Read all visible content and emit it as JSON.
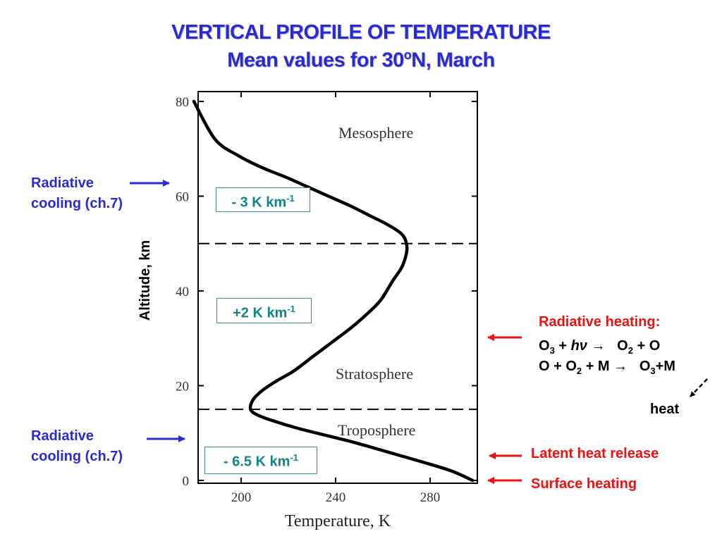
{
  "title_line1": "VERTICAL PROFILE OF TEMPERATURE",
  "title_line2_pre": "Mean values for 30",
  "title_line2_sup": "o",
  "title_line2_post": "N, March",
  "chart_data": {
    "type": "line",
    "xlabel": "Temperature, K",
    "ylabel": "Altitude, km",
    "xlim": [
      180,
      298
    ],
    "ylim": [
      0,
      80
    ],
    "xticks": [
      200,
      240,
      280
    ],
    "yticks": [
      0,
      20,
      40,
      60,
      80
    ],
    "grid": false,
    "series": [
      {
        "x": [
          298,
          289,
          276,
          262,
          248,
          236,
          224,
          214,
          207,
          204,
          205,
          209,
          215,
          222,
          230,
          238,
          246,
          253,
          259,
          264,
          268,
          270,
          270,
          268,
          262,
          254,
          246,
          237,
          228,
          219,
          209,
          199,
          189,
          180
        ],
        "y": [
          0,
          2,
          4,
          6,
          8,
          9.5,
          11,
          12.5,
          13.8,
          15,
          17,
          19,
          21,
          23,
          26,
          29,
          32,
          35,
          38,
          42,
          45,
          48,
          50,
          52,
          54,
          56,
          58,
          60,
          62,
          64,
          66,
          68.5,
          72,
          80
        ]
      }
    ],
    "reference_lines": [
      15,
      50
    ],
    "layer_labels": [
      "Mesosphere",
      "Stratosphere",
      "Troposphere"
    ]
  },
  "rates": {
    "meso": "- 3 K km",
    "strato": "+2 K km",
    "tropo": "- 6.5 K km",
    "exp": "-1"
  },
  "left_annotations": {
    "cooling_top_line1": "Radiative",
    "cooling_top_line2": "cooling (ch.7)",
    "cooling_bottom_line1": "Radiative",
    "cooling_bottom_line2": "cooling (ch.7)"
  },
  "right_annotations": {
    "heating_title": "Radiative heating:",
    "r1_a": "O",
    "r1_a_sub": "3",
    "r1_plus": " + ",
    "r1_hnu": "hν",
    "r1_arrow": " →   O",
    "r1_b_sub": "2",
    "r1_end": " + O",
    "r2_a": "O + O",
    "r2_a_sub": "2",
    "r2_mid": " + M →   O",
    "r2_b_sub": "3",
    "r2_end": "+M",
    "heat": "heat",
    "latent": "Latent heat release",
    "surface": "Surface heating"
  },
  "colors": {
    "accent_blue": "#2a2ad4",
    "accent_red": "#ee1111",
    "box_teal": "#108585"
  }
}
